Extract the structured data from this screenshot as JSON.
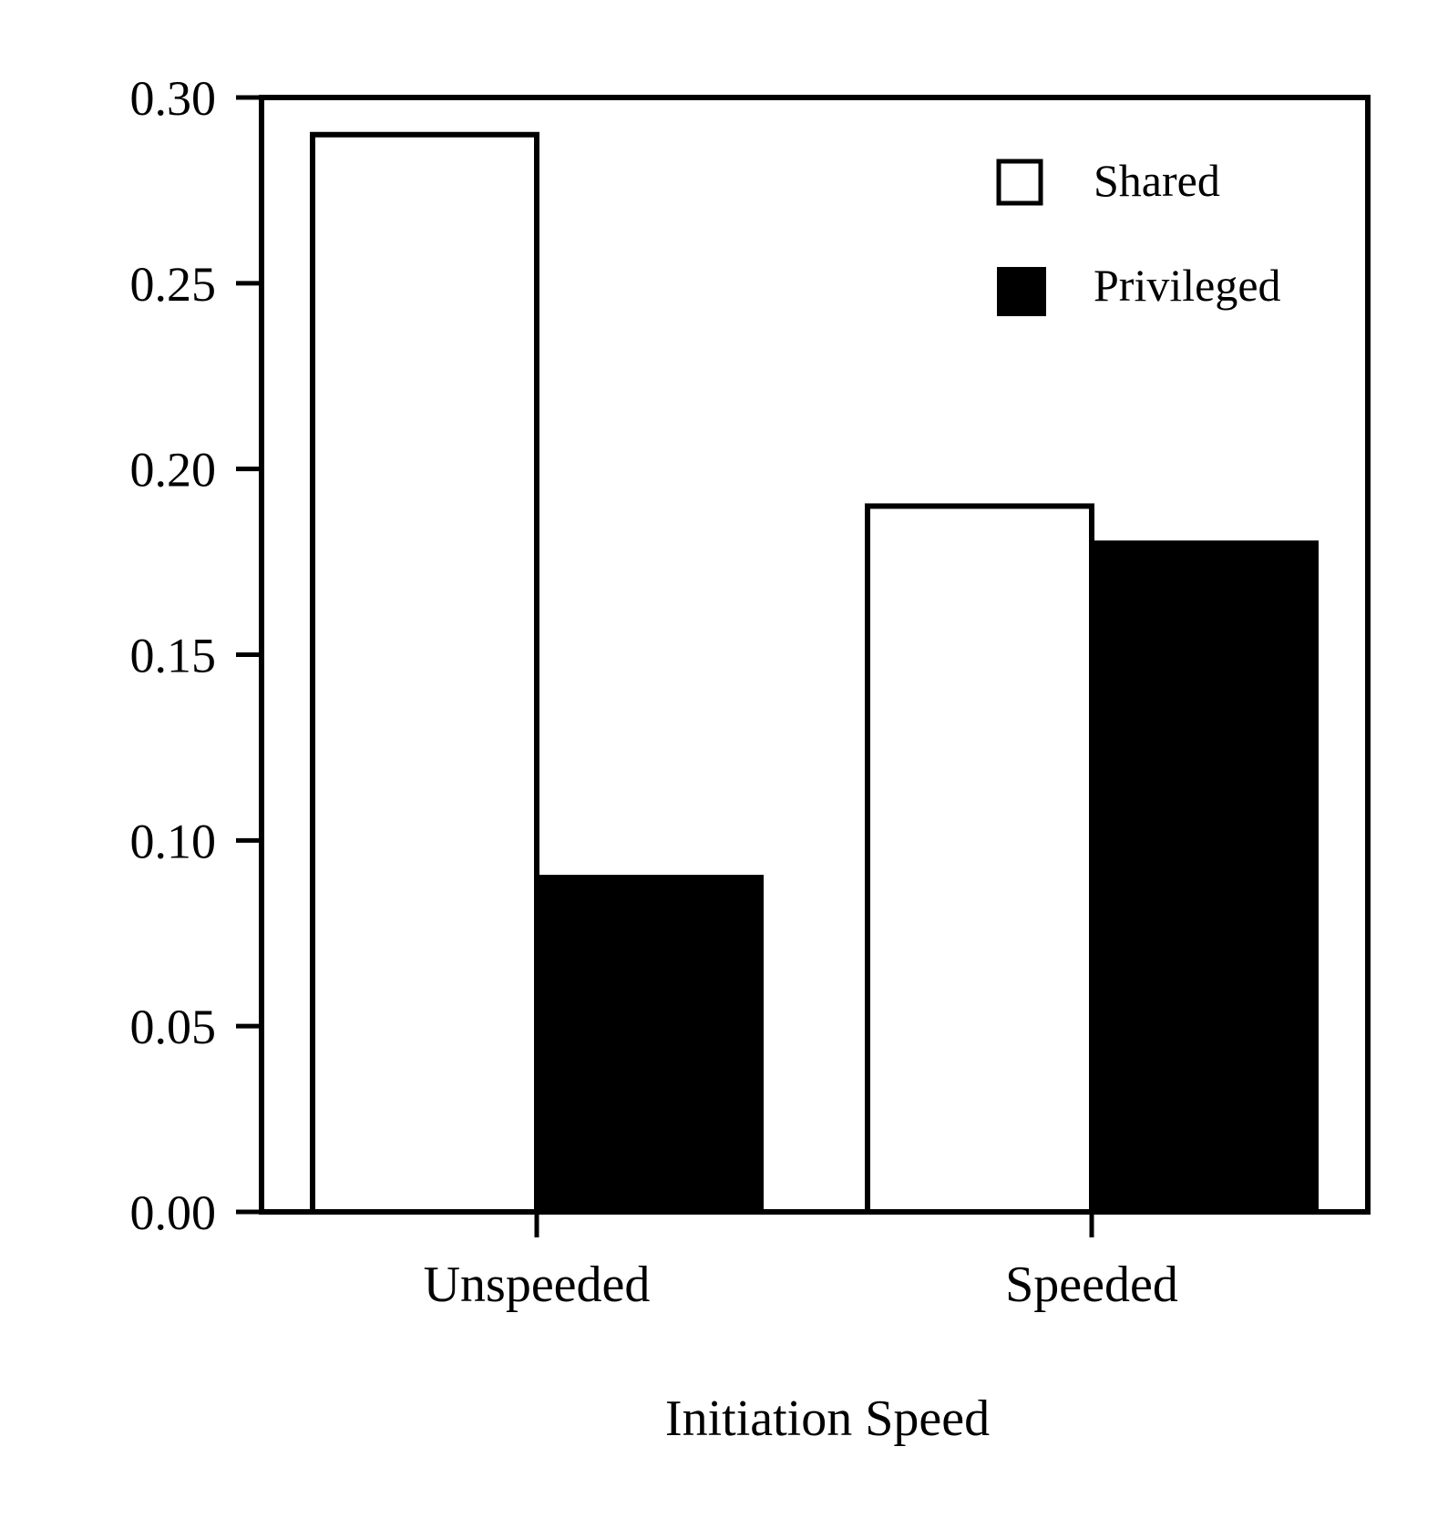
{
  "chart_data": {
    "type": "bar",
    "categories": [
      "Unspeeded",
      "Speeded"
    ],
    "series": [
      {
        "name": "Shared",
        "values": [
          0.29,
          0.19
        ],
        "fill": "#ffffff",
        "stroke": "#000000"
      },
      {
        "name": "Privileged",
        "values": [
          0.09,
          0.18
        ],
        "fill": "#000000",
        "stroke": "#000000"
      }
    ],
    "title": "",
    "xlabel": "Initiation Speed",
    "ylabel": "",
    "ylim": [
      0,
      0.3
    ],
    "yticks": [
      "0.00",
      "0.05",
      "0.10",
      "0.15",
      "0.20",
      "0.25",
      "0.30"
    ],
    "grid": false,
    "legend_position": "top-right"
  }
}
